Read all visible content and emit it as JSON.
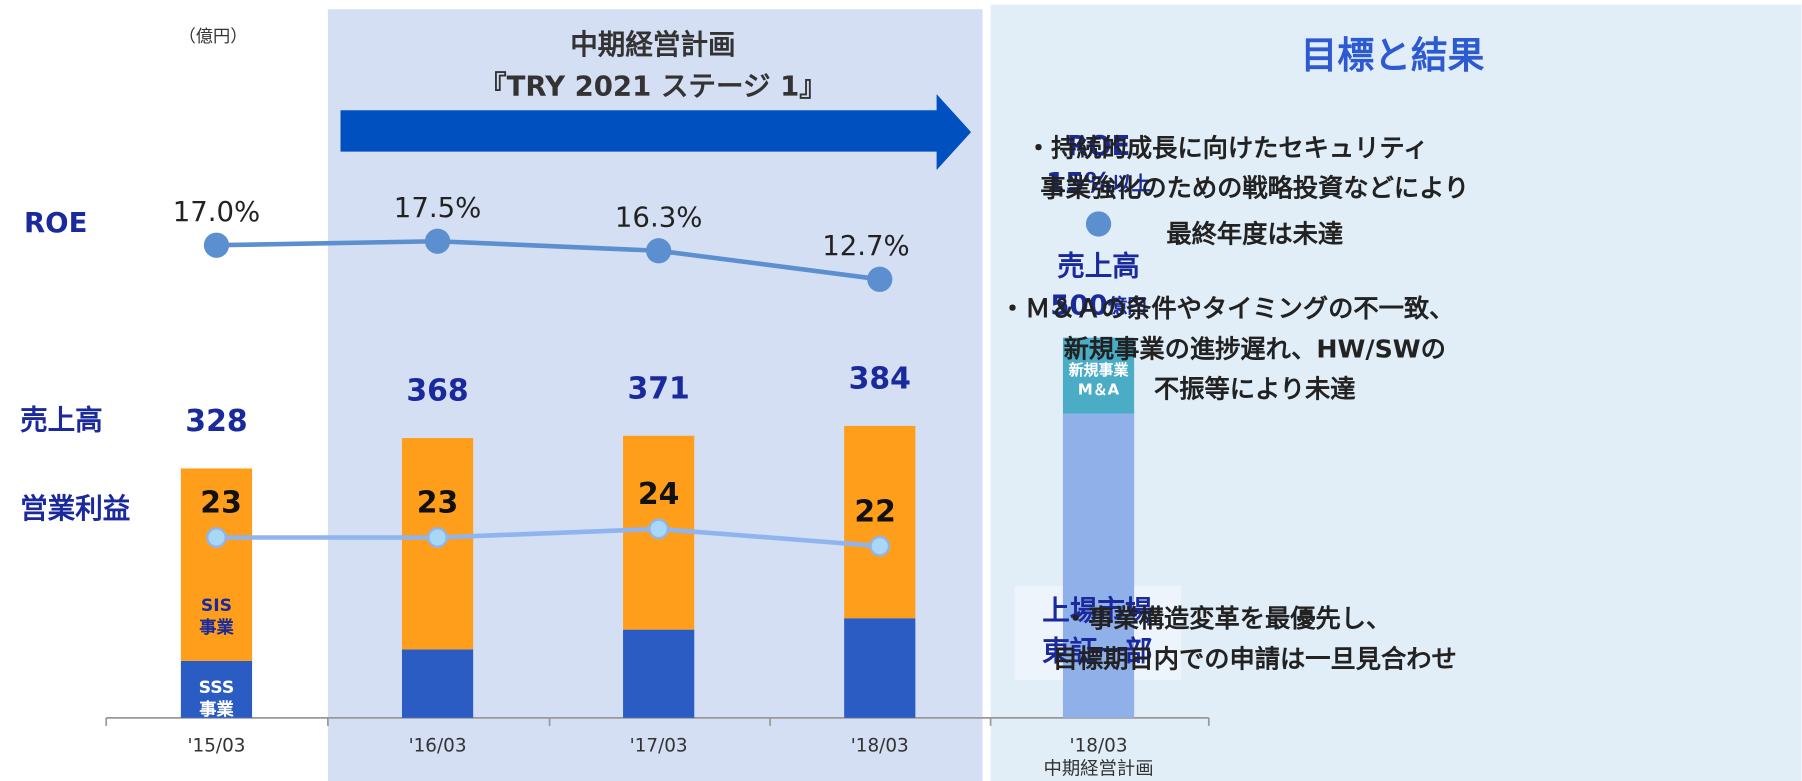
{
  "chart_data": {
    "type": "bar",
    "unit": "（億円）",
    "plan_title": "中期経営計画",
    "plan_name": "『TRY 2021 ステージ 1』",
    "row_labels": {
      "roe": "ROE",
      "sales": "売上高",
      "op": "営業利益"
    },
    "categories": [
      "'15/03",
      "'16/03",
      "'17/03",
      "'18/03"
    ],
    "ylim": [
      0,
      500
    ],
    "series": [
      {
        "name": "SSS\n事業",
        "color": "#2a5cc4",
        "values": [
          75,
          90,
          116,
          131
        ]
      },
      {
        "name": "SIS\n事業",
        "color": "#ff9e1b",
        "values": [
          253,
          278,
          255,
          253
        ]
      }
    ],
    "totals": [
      328,
      368,
      371,
      384
    ],
    "roe": {
      "color": "#5b8fd0",
      "ylim": [
        10,
        20
      ],
      "values": [
        17.0,
        17.5,
        16.3,
        12.7
      ],
      "value_labels": [
        "17.0%",
        "17.5%",
        "16.3%",
        "12.7%"
      ]
    },
    "op": {
      "color": "#8fb4ee",
      "ylim": [
        20,
        30
      ],
      "values": [
        23,
        23,
        24,
        22
      ]
    },
    "target": {
      "category": "'18/03",
      "sub": "中期経営計画",
      "roe_label": "ROE",
      "roe_value": "15%",
      "roe_suffix": "以上",
      "sales_label": "売上高",
      "sales_value": "500",
      "sales_unit": "億円",
      "base": 400,
      "base_color": "#8fb0e8",
      "add": 100,
      "add_color": "#4bacc6",
      "add_name": [
        "新規事業",
        "M＆A"
      ],
      "listing": [
        "上場市場",
        "東証一部"
      ]
    },
    "panel_title": "目標と結果",
    "bullets": [
      [
        "・持続的成長に向けたセキュリティ",
        "事業強化のための戦略投資などにより",
        "最終年度は未達"
      ],
      [
        "・Ｍ＆Ａの条件やタイミングの不一致、",
        "新規事業の進捗遅れ、HW/SWの",
        "不振等により未達"
      ],
      [
        "・事業構造変革を最優先し、",
        "目標期日内での申請は一旦見合わせ"
      ]
    ]
  }
}
